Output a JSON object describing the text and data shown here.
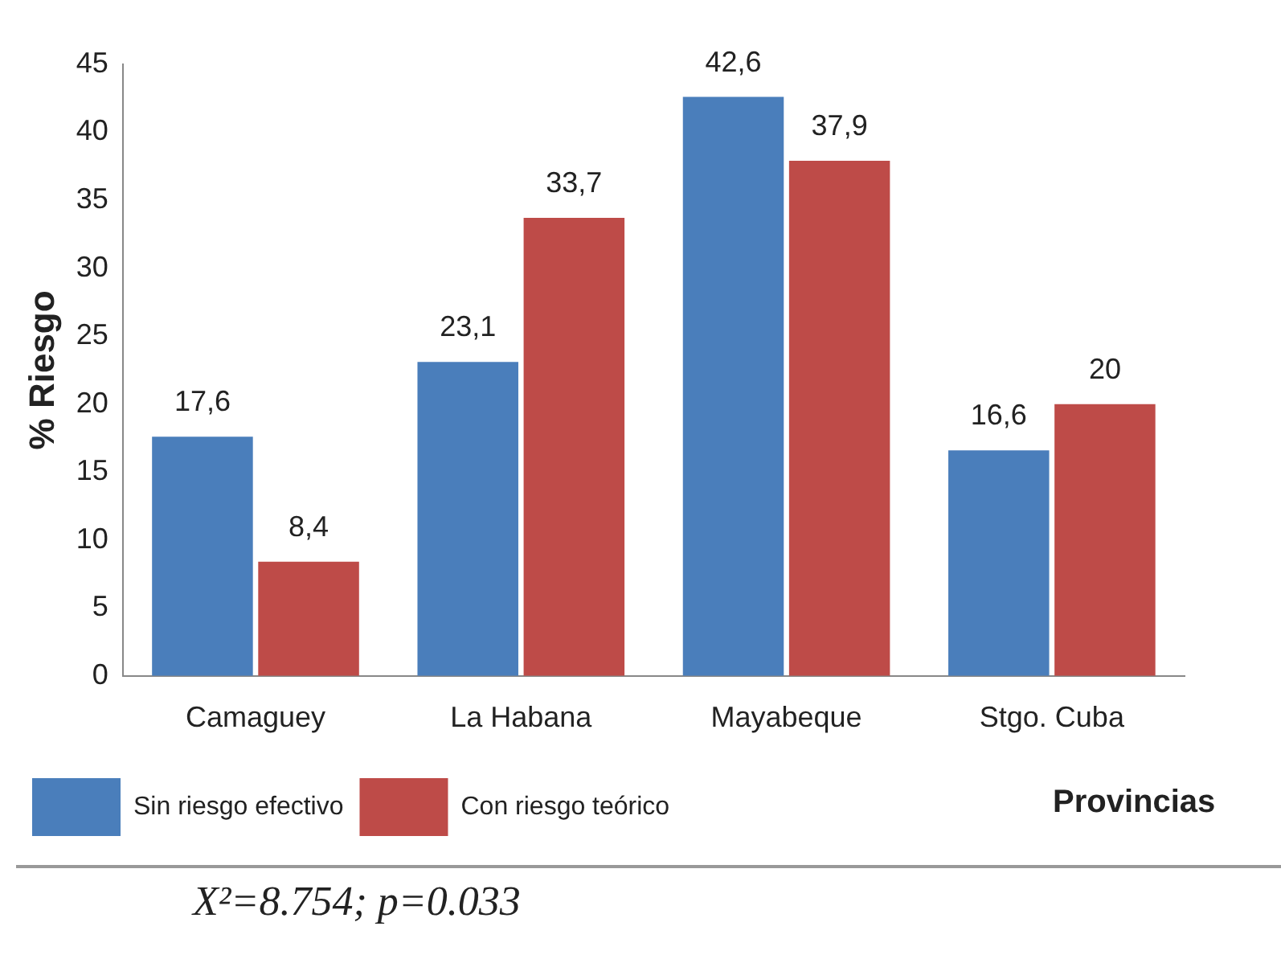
{
  "chart_data": {
    "type": "bar",
    "categories": [
      "Camaguey",
      "La Habana",
      "Mayabeque",
      "Stgo. Cuba"
    ],
    "series": [
      {
        "name": "Sin riesgo efectivo",
        "color": "#4a7ebb",
        "values": [
          17.6,
          23.1,
          42.6,
          16.6
        ],
        "value_labels": [
          "17,6",
          "23,1",
          "42,6",
          "16,6"
        ]
      },
      {
        "name": "Con riesgo teórico",
        "color": "#be4b48",
        "values": [
          8.4,
          33.7,
          37.9,
          20
        ],
        "value_labels": [
          "8,4",
          "33,7",
          "37,9",
          "20"
        ]
      }
    ],
    "ylabel": "% Riesgo",
    "xlabel": "Provincias",
    "ylim": [
      0,
      45
    ],
    "yticks": [
      0,
      5,
      10,
      15,
      20,
      25,
      30,
      35,
      40,
      45
    ],
    "grid": false,
    "legend": "bottom",
    "annotations": [
      "X²=8.754; p=0.033"
    ]
  }
}
